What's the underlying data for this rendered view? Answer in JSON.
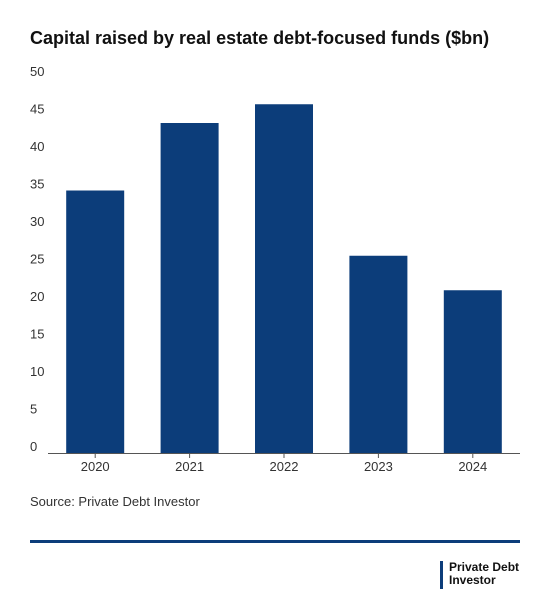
{
  "chart_data": {
    "type": "bar",
    "title": "Capital raised by real estate debt-focused funds ($bn)",
    "categories": [
      "2020",
      "2021",
      "2022",
      "2023",
      "2024"
    ],
    "values": [
      35,
      44,
      46.5,
      26.3,
      21.7
    ],
    "ylim": [
      0,
      50
    ],
    "yticks": [
      "0",
      "5",
      "10",
      "15",
      "20",
      "25",
      "30",
      "35",
      "40",
      "45",
      "50"
    ],
    "xlabel": "",
    "ylabel": "",
    "grid": false,
    "bar_color": "#0c3d7a"
  },
  "source": "Source: Private Debt Investor",
  "logo": {
    "line1": "Private Debt",
    "line2": "Investor",
    "color": "#0c3d7a"
  }
}
